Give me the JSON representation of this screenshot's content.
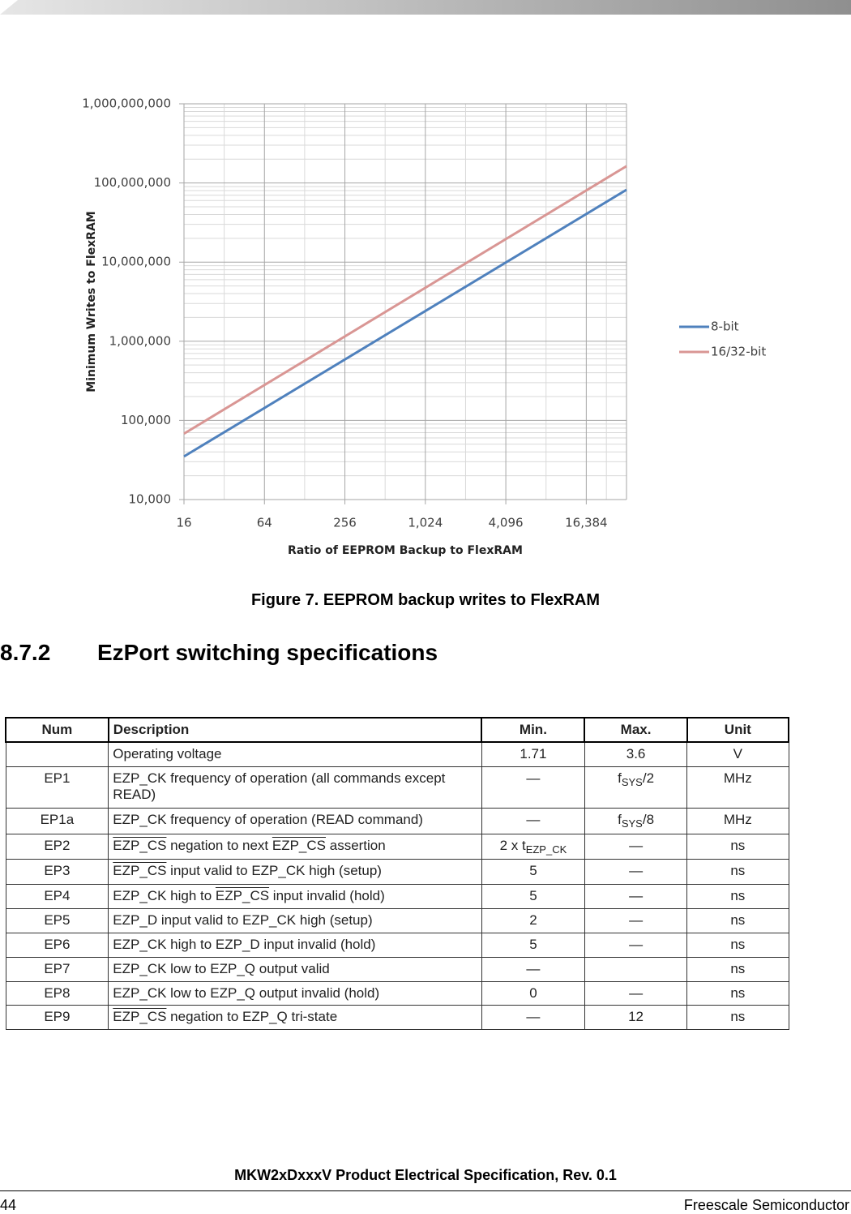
{
  "chart_data": {
    "type": "line",
    "y_label": "Minimum Writes to FlexRAM",
    "x_label": "Ratio of EEPROM Backup to FlexRAM",
    "x": [
      16,
      32768
    ],
    "series": [
      {
        "name": "8-bit",
        "color": "#4f81bd",
        "values": [
          35000,
          82000000
        ]
      },
      {
        "name": "16/32-bit",
        "color": "#d99694",
        "values": [
          68000,
          163000000
        ]
      }
    ],
    "xlim": [
      16,
      32768
    ],
    "ylim": [
      10000,
      1000000000
    ],
    "x_log_base": 2,
    "y_log_base": 10,
    "xticks": [
      16,
      64,
      256,
      {
        "value": 1024,
        "label": "1,024"
      },
      {
        "value": 4096,
        "label": "4,096"
      },
      {
        "value": 16384,
        "label": "16,384"
      }
    ],
    "yticks": [
      {
        "value": 10000,
        "label": "10,000"
      },
      {
        "value": 100000,
        "label": "100,000"
      },
      {
        "value": 1000000,
        "label": "1,000,000"
      },
      {
        "value": 10000000,
        "label": "10,000,000"
      },
      {
        "value": 100000000,
        "label": "100,000,000"
      },
      {
        "value": 1000000000,
        "label": "1,000,000,000"
      }
    ],
    "grid": true,
    "minor_grid": true,
    "legend": "right"
  },
  "figure": {
    "caption": "Figure 7. EEPROM backup writes to FlexRAM"
  },
  "section": {
    "number": "8.7.2",
    "title": "EzPort switching specifications"
  },
  "table": {
    "columns": [
      "Num",
      "Description",
      "Min.",
      "Max.",
      "Unit"
    ],
    "rows": [
      [
        null,
        "Operating voltage",
        "1.71",
        "3.6",
        "V"
      ],
      [
        "EP1",
        "EZP_CK frequency of operation (all commands except READ)",
        "—",
        [
          {
            "text": "f"
          },
          {
            "text": "SYS",
            "style": "sub"
          },
          {
            "text": "/2"
          }
        ],
        "MHz"
      ],
      [
        "EP1a",
        "EZP_CK frequency of operation (READ command)",
        "—",
        [
          {
            "text": "f"
          },
          {
            "text": "SYS",
            "style": "sub"
          },
          {
            "text": "/8"
          }
        ],
        "MHz"
      ],
      [
        "EP2",
        [
          {
            "text": "EZP_CS",
            "style": "overline"
          },
          {
            "text": " negation to next "
          },
          {
            "text": "EZP_CS",
            "style": "overline"
          },
          {
            "text": " assertion"
          }
        ],
        [
          {
            "text": "2 x t"
          },
          {
            "text": "EZP_CK",
            "style": "sub"
          }
        ],
        "—",
        "ns"
      ],
      [
        "EP3",
        [
          {
            "text": "EZP_CS",
            "style": "overline"
          },
          {
            "text": " input valid to EZP_CK high (setup)"
          }
        ],
        "5",
        "—",
        "ns"
      ],
      [
        "EP4",
        [
          {
            "text": "EZP_CK high to "
          },
          {
            "text": "EZP_CS",
            "style": "overline"
          },
          {
            "text": " input invalid (hold)"
          }
        ],
        "5",
        "—",
        "ns"
      ],
      [
        "EP5",
        "EZP_D input valid to EZP_CK high (setup)",
        "2",
        "—",
        "ns"
      ],
      [
        "EP6",
        "EZP_CK high to EZP_D input invalid (hold)",
        "5",
        "—",
        "ns"
      ],
      [
        "EP7",
        "EZP_CK low to EZP_Q output valid",
        "—",
        null,
        "ns"
      ],
      [
        "EP8",
        "EZP_CK low to EZP_Q output invalid (hold)",
        "0",
        "—",
        "ns"
      ],
      [
        "EP9",
        [
          {
            "text": "EZP_CS",
            "style": "overline"
          },
          {
            "text": " negation to EZP_Q tri-state"
          }
        ],
        "—",
        "12",
        "ns"
      ]
    ]
  },
  "footer": {
    "title": "MKW2xDxxxV Product Electrical Specification, Rev. 0.1",
    "page": "44",
    "company": "Freescale Semiconductor"
  }
}
